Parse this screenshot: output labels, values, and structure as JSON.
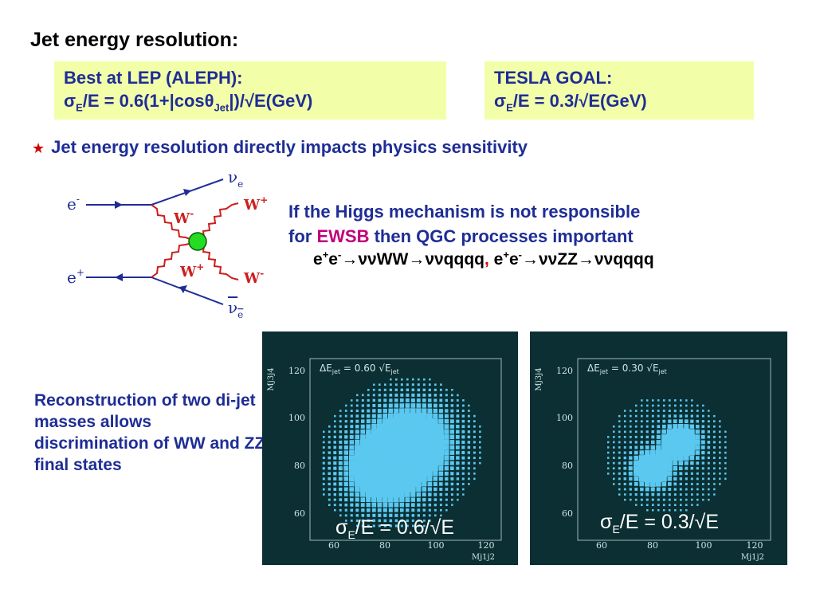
{
  "title": "Jet energy resolution:",
  "lep_box": {
    "heading": "Best at LEP (ALEPH):",
    "formula_sigma": "σ",
    "formula_sub": "E",
    "formula_mid": "/E = 0.6(1+|cosθ",
    "formula_sub2": "Jet",
    "formula_end": "|)/√E(GeV)"
  },
  "tesla_box": {
    "heading": "TESLA GOAL:",
    "formula_sigma": "σ",
    "formula_sub": "E",
    "formula_end": "/E = 0.3/√E(GeV)"
  },
  "bullet": {
    "star": "★",
    "text": "Jet energy resolution directly impacts physics sensitivity"
  },
  "feynman": {
    "e_minus": "e",
    "e_minus_sup": "-",
    "e_plus": "e",
    "e_plus_sup": "+",
    "nu_e": "ν",
    "nu_e_sub": "e",
    "nubar_e": "ν",
    "nubar_e_sub": "e",
    "w_plus_out": "W",
    "w_plus_out_sup": "+",
    "w_minus_out": "W",
    "w_minus_out_sup": "-",
    "w_minus_in": "W",
    "w_minus_in_sup": "-",
    "w_plus_in": "W",
    "w_plus_in_sup": "+",
    "vertex_color": "#22dd22"
  },
  "higgs": {
    "line1": "If the Higgs mechanism is not responsible",
    "line2_pre": "for ",
    "line2_ewsb": "EWSB",
    "line2_post": " then QGC processes important"
  },
  "processes": {
    "p1_e1": "e",
    "p1_s1": "+",
    "p1_e2": "e",
    "p1_s2": "-",
    "p1_rest": "→ννWW→ννqqqq",
    "separator": ",",
    "p2_e1": " e",
    "p2_s1": "+",
    "p2_e2": "e",
    "p2_s2": "-",
    "p2_rest": "→ννZZ→ννqqqq"
  },
  "reconstruction": "Reconstruction of two di-jet masses allows discrimination of WW and ZZ final states",
  "plots": [
    {
      "inset_pre": "ΔE",
      "inset_sub": "jet",
      "inset_mid": " = 0.60 √E",
      "inset_sub2": "jet",
      "ylabel": "Mj3j4",
      "xlabel": "Mj1j2",
      "xticks": [
        "60",
        "80",
        "100",
        "120"
      ],
      "yticks": [
        "120",
        "100",
        "80",
        "60"
      ],
      "caption_sigma": "σ",
      "caption_sub": "E",
      "caption_rest": "/E = 0.6/√E",
      "spread": 9,
      "peaks": [
        [
          80,
          80
        ],
        [
          91,
          91
        ]
      ]
    },
    {
      "inset_pre": "ΔE",
      "inset_sub": "jet",
      "inset_mid": " = 0.30 √E",
      "inset_sub2": "jet",
      "ylabel": "Mj3j4",
      "xlabel": "Mj1j2",
      "xticks": [
        "60",
        "80",
        "100",
        "120"
      ],
      "yticks": [
        "120",
        "100",
        "80",
        "60"
      ],
      "caption_sigma": "σ",
      "caption_sub": "E",
      "caption_rest": "/E = 0.3/√E",
      "spread": 4.5,
      "peaks": [
        [
          80,
          80
        ],
        [
          91,
          91
        ]
      ]
    }
  ],
  "colors": {
    "text_blue": "#1e2d96",
    "box_fill": "#f3ffa8",
    "ewsb_magenta": "#c0007a",
    "star_red": "#d40000",
    "plot_bg": "#0b2f32",
    "plot_marks": "#5bc8f0"
  }
}
